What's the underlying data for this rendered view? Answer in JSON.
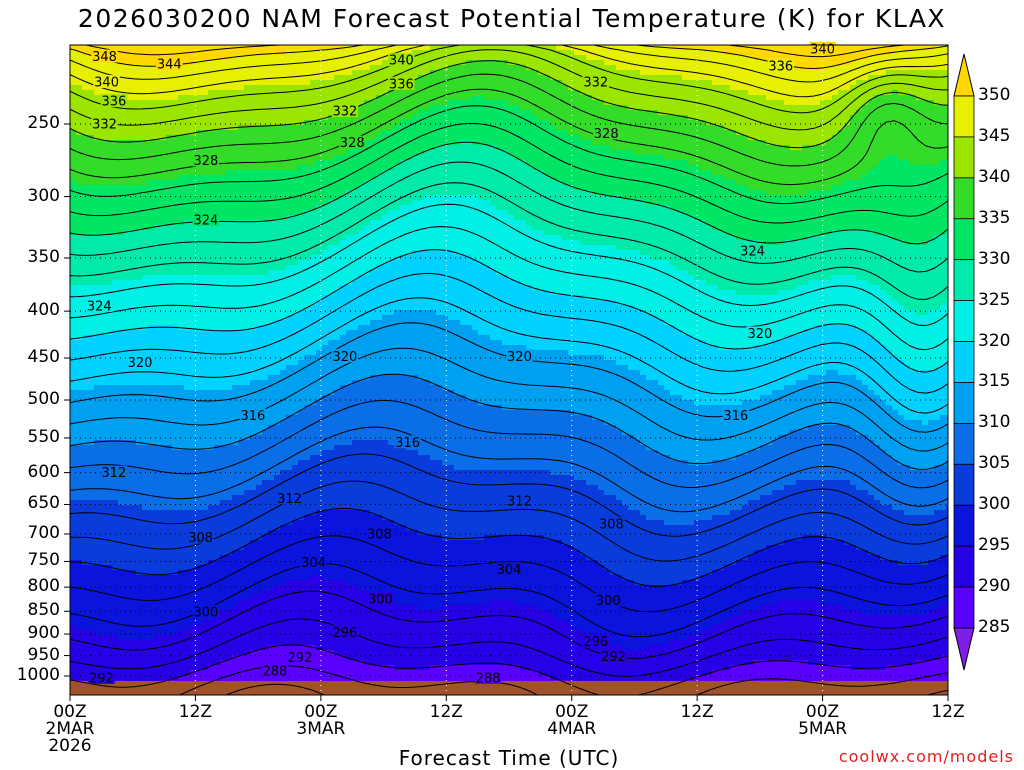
{
  "title": "2026030200 NAM Forecast Potential Temperature (K) for KLAX",
  "xlabel": "Forecast Time (UTC)",
  "credit": "coolwx.com/models",
  "chart_data": {
    "type": "contour",
    "variable": "Potential Temperature (K)",
    "station": "KLAX",
    "model": "NAM",
    "init": "2026030200",
    "y_axis": "pressure (hPa)",
    "y_ticks": [
      "250",
      "300",
      "350",
      "400",
      "450",
      "500",
      "550",
      "600",
      "650",
      "700",
      "750",
      "800",
      "850",
      "900",
      "950",
      "1000"
    ],
    "y_range": [
      200,
      1000
    ],
    "x_ticks": [
      {
        "hour": 0,
        "lines": [
          "00Z",
          "2MAR",
          "2026"
        ]
      },
      {
        "hour": 12,
        "lines": [
          "12Z"
        ]
      },
      {
        "hour": 24,
        "lines": [
          "00Z",
          "3MAR"
        ]
      },
      {
        "hour": 36,
        "lines": [
          "12Z"
        ]
      },
      {
        "hour": 48,
        "lines": [
          "00Z",
          "4MAR"
        ]
      },
      {
        "hour": 60,
        "lines": [
          "12Z"
        ]
      },
      {
        "hour": 72,
        "lines": [
          "00Z",
          "5MAR"
        ]
      },
      {
        "hour": 84,
        "lines": [
          "12Z"
        ]
      }
    ],
    "x_range": [
      0,
      84
    ],
    "colorbar": {
      "levels": [
        285,
        290,
        295,
        300,
        305,
        310,
        315,
        320,
        325,
        330,
        335,
        340,
        345,
        350
      ],
      "labels": [
        "350",
        "345",
        "340",
        "335",
        "330",
        "325",
        "320",
        "315",
        "310",
        "305",
        "300",
        "295",
        "290",
        "285"
      ],
      "colors": [
        "#7e1ee6",
        "#5a00ff",
        "#2800e6",
        "#0a14dc",
        "#0a3cdc",
        "#0a6ee6",
        "#00a0f0",
        "#00d2ff",
        "#00f0e6",
        "#00ebaa",
        "#00e664",
        "#32dc28",
        "#9be600",
        "#e6f000",
        "#ffd800"
      ]
    },
    "contour_interval": 2,
    "labeled_contours": [
      {
        "value": 348,
        "x": 3.3,
        "p": 211
      },
      {
        "value": 344,
        "x": 9.5,
        "p": 215
      },
      {
        "value": 340,
        "x": 3.5,
        "p": 225
      },
      {
        "value": 340,
        "x": 31.7,
        "p": 213
      },
      {
        "value": 340,
        "x": 72.0,
        "p": 207
      },
      {
        "value": 336,
        "x": 31.7,
        "p": 226
      },
      {
        "value": 336,
        "x": 68.0,
        "p": 216
      },
      {
        "value": 336,
        "x": 4.2,
        "p": 236
      },
      {
        "value": 332,
        "x": 3.3,
        "p": 250
      },
      {
        "value": 332,
        "x": 26.3,
        "p": 242
      },
      {
        "value": 332,
        "x": 50.3,
        "p": 225
      },
      {
        "value": 328,
        "x": 13.0,
        "p": 274
      },
      {
        "value": 328,
        "x": 27.0,
        "p": 262
      },
      {
        "value": 328,
        "x": 51.3,
        "p": 256
      },
      {
        "value": 324,
        "x": 13.0,
        "p": 318
      },
      {
        "value": 324,
        "x": 65.3,
        "p": 344
      },
      {
        "value": 324,
        "x": 2.8,
        "p": 395
      },
      {
        "value": 320,
        "x": 6.7,
        "p": 455
      },
      {
        "value": 320,
        "x": 26.3,
        "p": 448
      },
      {
        "value": 320,
        "x": 43.0,
        "p": 448
      },
      {
        "value": 320,
        "x": 66.0,
        "p": 423
      },
      {
        "value": 316,
        "x": 17.5,
        "p": 520
      },
      {
        "value": 316,
        "x": 32.3,
        "p": 556
      },
      {
        "value": 316,
        "x": 63.7,
        "p": 520
      },
      {
        "value": 312,
        "x": 4.2,
        "p": 600
      },
      {
        "value": 312,
        "x": 21.0,
        "p": 640
      },
      {
        "value": 312,
        "x": 43.0,
        "p": 644
      },
      {
        "value": 308,
        "x": 12.5,
        "p": 706
      },
      {
        "value": 308,
        "x": 29.6,
        "p": 700
      },
      {
        "value": 308,
        "x": 51.8,
        "p": 683
      },
      {
        "value": 304,
        "x": 23.3,
        "p": 752
      },
      {
        "value": 304,
        "x": 42.0,
        "p": 765
      },
      {
        "value": 300,
        "x": 13.0,
        "p": 851
      },
      {
        "value": 300,
        "x": 29.7,
        "p": 824
      },
      {
        "value": 300,
        "x": 51.5,
        "p": 827
      },
      {
        "value": 296,
        "x": 26.3,
        "p": 896
      },
      {
        "value": 296,
        "x": 50.3,
        "p": 917
      },
      {
        "value": 292,
        "x": 22.0,
        "p": 955
      },
      {
        "value": 292,
        "x": 52.0,
        "p": 952
      },
      {
        "value": 292,
        "x": 3.0,
        "p": 1005
      },
      {
        "value": 288,
        "x": 19.6,
        "p": 988
      },
      {
        "value": 288,
        "x": 40.0,
        "p": 1005
      }
    ]
  }
}
